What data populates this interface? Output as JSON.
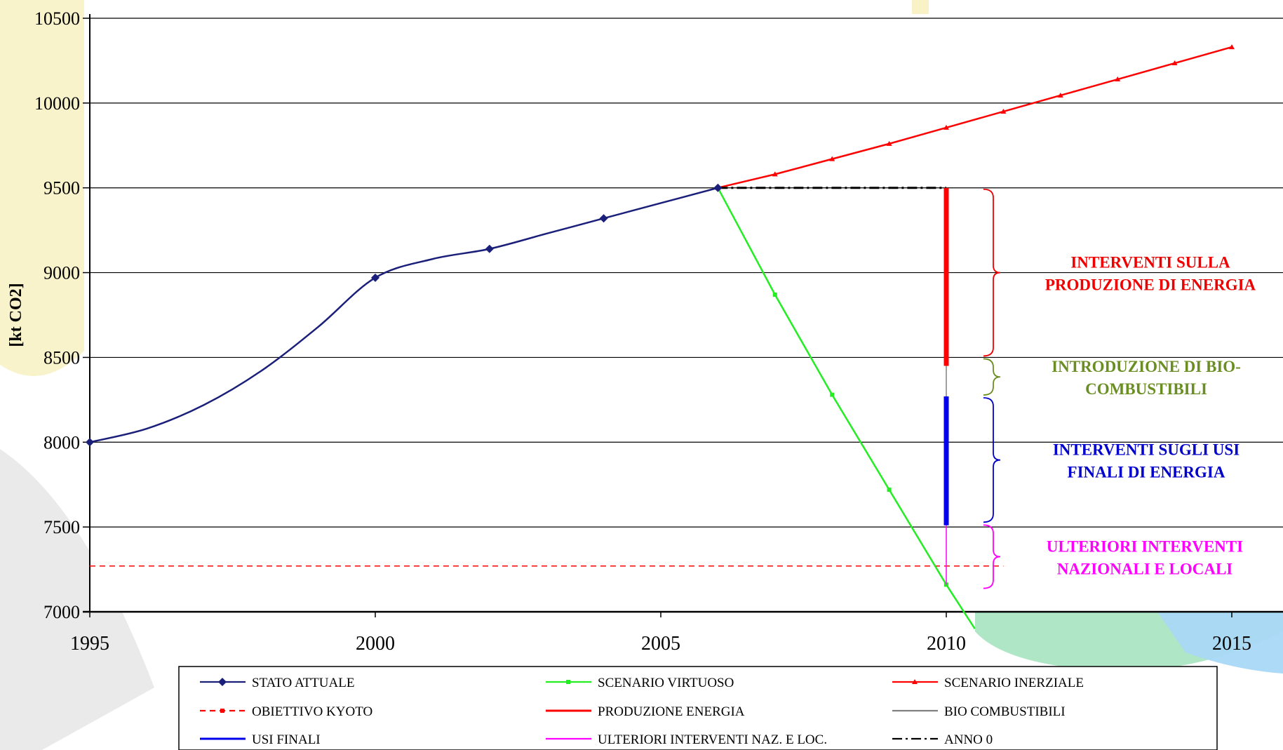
{
  "chart_data": {
    "type": "line",
    "title": "",
    "xlabel": "",
    "ylabel": "[kt CO2]",
    "xlim": [
      1995,
      2017
    ],
    "ylim": [
      7000,
      10500
    ],
    "x_ticks": [
      "1995",
      "2000",
      "2005",
      "2010",
      "2015"
    ],
    "y_ticks": [
      "7000",
      "7500",
      "8000",
      "8500",
      "9000",
      "9500",
      "10000",
      "10500"
    ],
    "grid": "horizontal",
    "legend_position": "bottom",
    "series": [
      {
        "name": "STATO ATTUALE",
        "color": "#1a1f7a",
        "marker": "diamond",
        "style": "solid",
        "points": [
          [
            1995,
            8000
          ],
          [
            1996,
            8080
          ],
          [
            1997,
            8220
          ],
          [
            1998,
            8420
          ],
          [
            1999,
            8680
          ],
          [
            2000,
            8970
          ],
          [
            2001,
            9080
          ],
          [
            2002,
            9140
          ],
          [
            2003,
            9230
          ],
          [
            2004,
            9320
          ],
          [
            2005,
            9410
          ],
          [
            2006,
            9500
          ]
        ]
      },
      {
        "name": "SCENARIO VIRTUOSO",
        "color": "#22ee22",
        "marker": "square",
        "style": "solid",
        "points": [
          [
            2006,
            9500
          ],
          [
            2007,
            8870
          ],
          [
            2008,
            8280
          ],
          [
            2009,
            7720
          ],
          [
            2010,
            7160
          ],
          [
            2010.5,
            6900
          ]
        ]
      },
      {
        "name": "SCENARIO INERZIALE",
        "color": "#ff0000",
        "marker": "triangle",
        "style": "solid",
        "points": [
          [
            2006,
            9500
          ],
          [
            2007,
            9580
          ],
          [
            2008,
            9670
          ],
          [
            2009,
            9760
          ],
          [
            2010,
            9855
          ],
          [
            2011,
            9950
          ],
          [
            2012,
            10045
          ],
          [
            2013,
            10140
          ],
          [
            2014,
            10235
          ],
          [
            2015,
            10330
          ]
        ]
      },
      {
        "name": "OBIETTIVO KYOTO",
        "color": "#ff0000",
        "marker": "square",
        "style": "dashed",
        "points": [
          [
            1995,
            7270
          ],
          [
            2011,
            7270
          ]
        ]
      },
      {
        "name": "PRODUZIONE ENERGIA",
        "color": "#ff0000",
        "marker": "none",
        "style": "solid",
        "width": 7,
        "points": [
          [
            2010,
            9500
          ],
          [
            2010,
            8450
          ]
        ]
      },
      {
        "name": "BIO COMBUSTIBILI",
        "color": "#808080",
        "marker": "none",
        "style": "solid",
        "width": 1.5,
        "points": [
          [
            2010,
            8450
          ],
          [
            2010,
            8270
          ]
        ]
      },
      {
        "name": "USI FINALI",
        "color": "#0000ee",
        "marker": "none",
        "style": "solid",
        "width": 7,
        "points": [
          [
            2010,
            8270
          ],
          [
            2010,
            7510
          ]
        ]
      },
      {
        "name": "ULTERIORI INTERVENTI NAZ. E LOC.",
        "color": "#ff00ff",
        "marker": "none",
        "style": "solid",
        "width": 1.5,
        "points": [
          [
            2010,
            7510
          ],
          [
            2010,
            7160
          ]
        ]
      },
      {
        "name": "ANNO 0",
        "color": "#000000",
        "marker": "none",
        "style": "dashdot",
        "points": [
          [
            2006,
            9500
          ],
          [
            2010,
            9500
          ]
        ]
      }
    ],
    "annotations": [
      {
        "text": "INTERVENTI SULLA\nPRODUZIONE DI ENERGIA",
        "color": "#ee0000",
        "y_range": [
          8500,
          9500
        ]
      },
      {
        "text": "INTRODUZIONE DI BIO-\nCOMBUSTIBILI",
        "color": "#6b8e23",
        "y_range": [
          8270,
          8500
        ]
      },
      {
        "text": "INTERVENTI SUGLI USI\nFINALI DI ENERGIA",
        "color": "#0000cc",
        "y_range": [
          7520,
          8270
        ]
      },
      {
        "text": "ULTERIORI INTERVENTI\nNAZIONALI E LOCALI",
        "color": "#ff00ff",
        "y_range": [
          7130,
          7520
        ]
      }
    ]
  }
}
